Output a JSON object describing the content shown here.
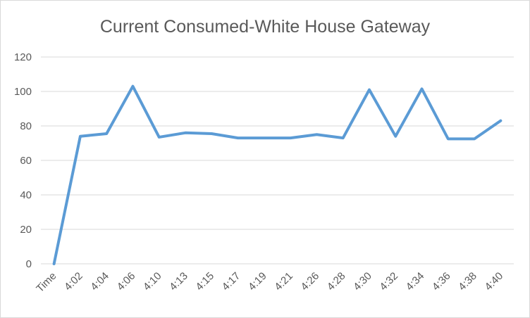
{
  "chart_data": {
    "type": "line",
    "title": "Current Consumed-White House Gateway",
    "xlabel": "",
    "ylabel": "",
    "categories": [
      "Time",
      "4:02",
      "4:04",
      "4:06",
      "4:10",
      "4:13",
      "4:15",
      "4:17",
      "4:19",
      "4:21",
      "4:26",
      "4:28",
      "4:30",
      "4:32",
      "4:34",
      "4:36",
      "4:38",
      "4:40"
    ],
    "series": [
      {
        "values": [
          0,
          74,
          75.5,
          103,
          73.5,
          76,
          75.5,
          73,
          73,
          73,
          75,
          73,
          101,
          74,
          101.5,
          72.5,
          72.5,
          83
        ],
        "color": "#5b9bd5"
      }
    ],
    "ylim": [
      0,
      120
    ],
    "yticks": [
      0,
      20,
      40,
      60,
      80,
      100,
      120
    ],
    "grid": true,
    "legend": "none"
  }
}
